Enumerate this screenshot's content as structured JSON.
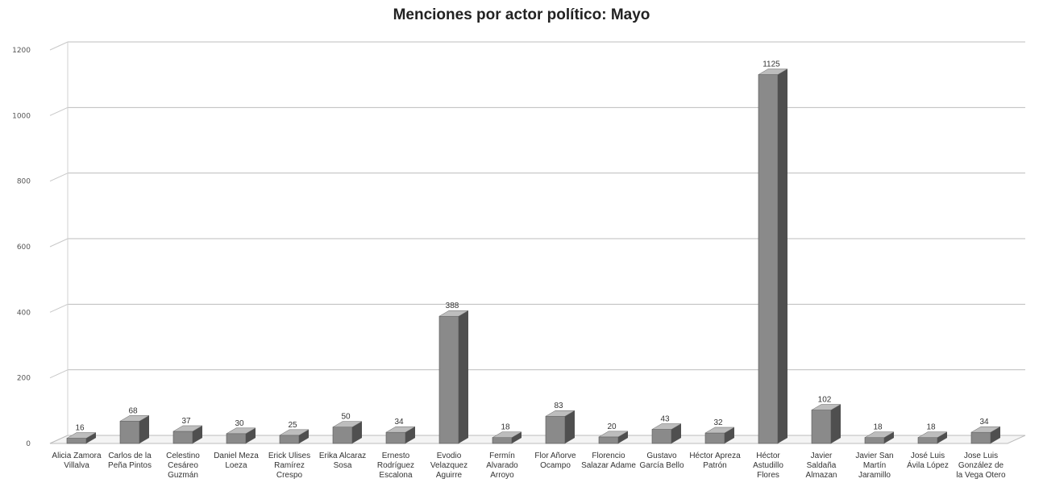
{
  "chart_data": {
    "type": "bar",
    "title": "Menciones por actor político: Mayo",
    "xlabel": "",
    "ylabel": "",
    "ylim": [
      0,
      1200
    ],
    "yticks": [
      0,
      200,
      400,
      600,
      800,
      1000,
      1200
    ],
    "grid": true,
    "legend": "none",
    "bar_color": "#8a8a8a",
    "categories": [
      "Alicia Zamora Villalva",
      "Carlos de la Peña Pintos",
      "Celestino Cesáreo Guzmán",
      "Daniel Meza Loeza",
      "Erick Ulises Ramírez Crespo",
      "Erika Alcaraz Sosa",
      "Ernesto Rodríguez Escalona",
      "Evodio Velazquez Aguirre",
      "Fermín Alvarado Arroyo",
      "Flor Añorve Ocampo",
      "Florencio Salazar Adame",
      "Gustavo García Bello",
      "Héctor Apreza Patrón",
      "Héctor Astudillo Flores",
      "Javier Saldaña Almazan",
      "Javier San Martín Jaramillo",
      "José Luis Ávila López",
      "Jose Luis González de la Vega Otero"
    ],
    "values": [
      16,
      68,
      37,
      30,
      25,
      50,
      34,
      388,
      18,
      83,
      20,
      43,
      32,
      1125,
      102,
      18,
      18,
      34
    ]
  }
}
